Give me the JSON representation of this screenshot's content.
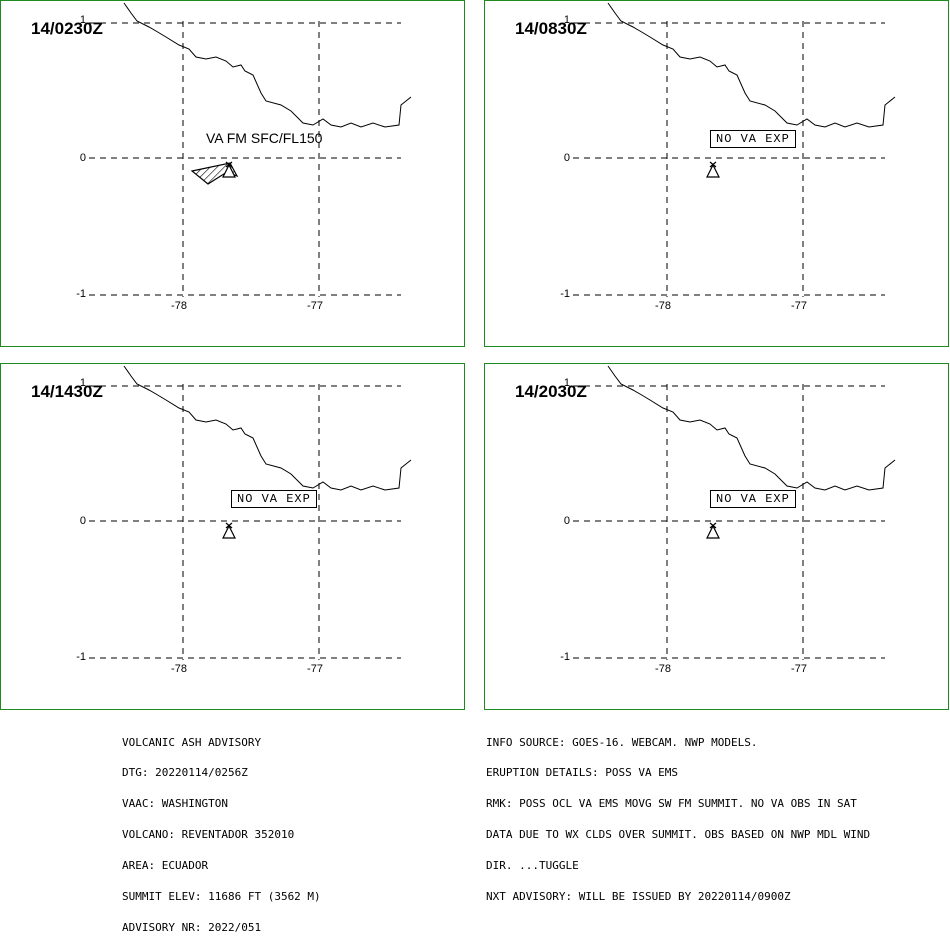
{
  "panels": [
    {
      "time": "14/0230Z",
      "label": "VA FM SFC/FL150",
      "label_type": "ash",
      "has_ash": true
    },
    {
      "time": "14/0830Z",
      "label": "NO VA EXP",
      "label_type": "box",
      "has_ash": false
    },
    {
      "time": "14/1430Z",
      "label": "NO VA EXP",
      "label_type": "box",
      "has_ash": false
    },
    {
      "time": "14/2030Z",
      "label": "NO VA EXP",
      "label_type": "box",
      "has_ash": false
    }
  ],
  "axes": {
    "lat_ticks": [
      "1",
      "0",
      "-1"
    ],
    "lon_ticks": [
      "-78",
      "-77"
    ]
  },
  "advisory_left": [
    "VOLCANIC ASH ADVISORY",
    "DTG: 20220114/0256Z",
    "VAAC: WASHINGTON",
    "VOLCANO: REVENTADOR 352010",
    "AREA: ECUADOR",
    "SUMMIT ELEV: 11686 FT (3562 M)",
    "ADVISORY NR: 2022/051"
  ],
  "advisory_right": [
    "INFO SOURCE: GOES-16. WEBCAM. NWP MODELS.",
    "ERUPTION DETAILS: POSS VA EMS",
    "RMK: POSS OCL VA EMS MOVG SW FM SUMMIT. NO VA OBS IN SAT",
    "DATA DUE TO WX CLDS OVER SUMMIT. OBS BASED ON NWP MDL WIND",
    "DIR. ...TUGGLE",
    "NXT ADVISORY: WILL BE ISSUED BY 20220114/0900Z"
  ],
  "colors": {
    "panel_border": "#1f8a1f",
    "lines": "#000000"
  },
  "icons": {
    "volcano": "volcano-icon"
  }
}
